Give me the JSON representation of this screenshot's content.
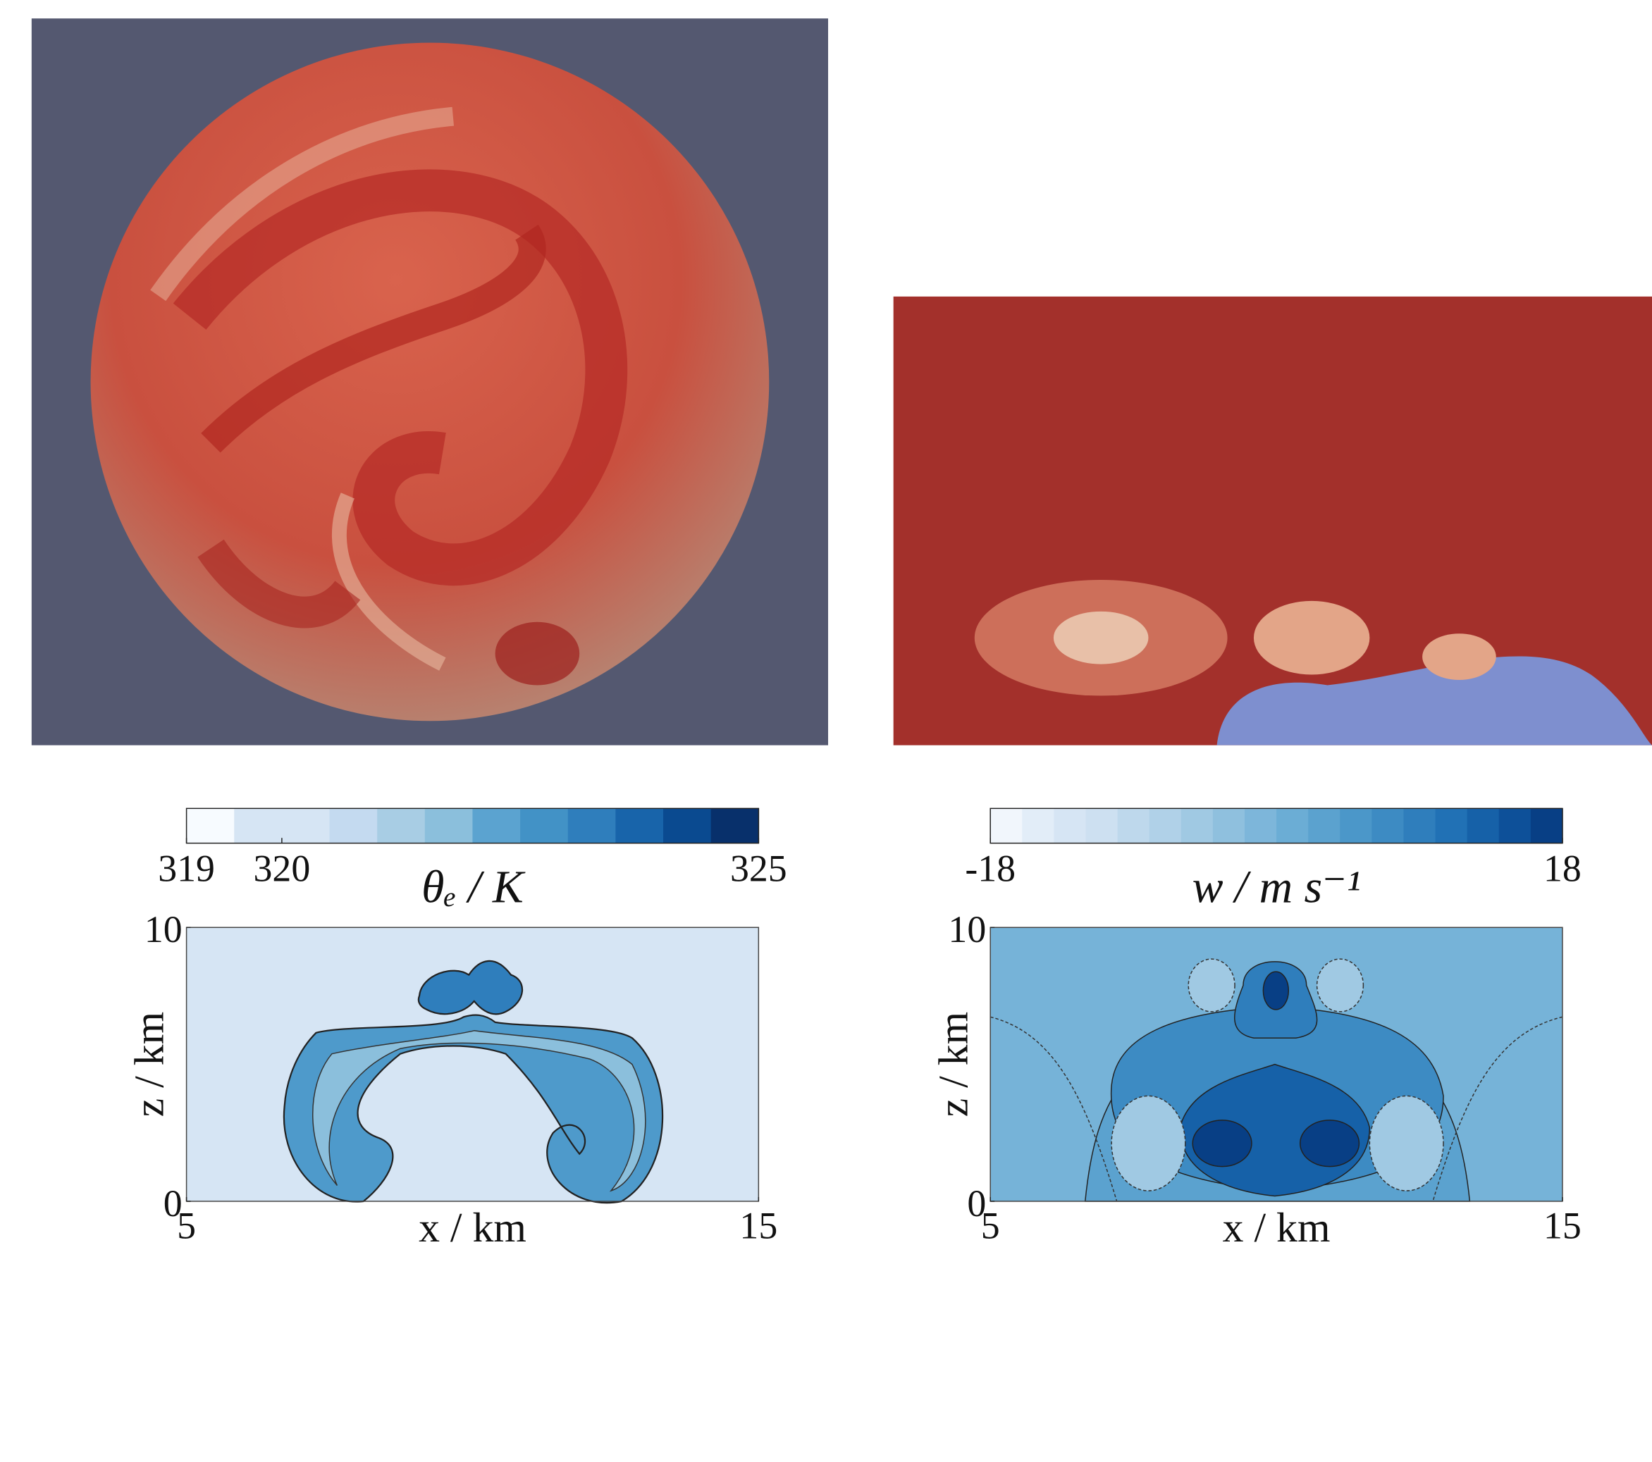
{
  "chart_data": [
    {
      "type": "contour",
      "colorbar_label": "θₑ / K",
      "colorbar_lim": [
        319,
        325
      ],
      "colorbar_ticks": [
        319,
        320,
        325
      ],
      "colors": [
        "#f7fbff",
        "#d6e5f4",
        "#d6e5f4",
        "#c4daf0",
        "#a8cde4",
        "#8bbfdc",
        "#5ba3d0",
        "#4292c6",
        "#2f7ebc",
        "#1864aa",
        "#0a4a90",
        "#08306b"
      ],
      "xlabel": "x / km",
      "ylabel": "z / km",
      "xlim": [
        5,
        15
      ],
      "xticks": [
        5,
        15
      ],
      "ylim": [
        0,
        10
      ],
      "yticks": [
        0,
        10
      ]
    },
    {
      "type": "contour",
      "colorbar_label": "w / m s⁻¹",
      "colorbar_lim": [
        -18,
        18
      ],
      "colorbar_ticks": [
        -18,
        18
      ],
      "colors": [
        "#f1f6fc",
        "#e2edf8",
        "#d6e5f4",
        "#cde0f1",
        "#bed8ec",
        "#b0d1e8",
        "#a0c9e3",
        "#8fc0de",
        "#7db6da",
        "#6badd5",
        "#5ba2cf",
        "#4b97c9",
        "#3d8bc3",
        "#2f7ebc",
        "#2171b5",
        "#1661a8",
        "#0d5099",
        "#083f85"
      ],
      "xlabel": "x / km",
      "ylabel": "z / km",
      "xlim": [
        5,
        15
      ],
      "xticks": [
        5,
        15
      ],
      "ylim": [
        0,
        10
      ],
      "yticks": [
        0,
        10
      ]
    }
  ]
}
